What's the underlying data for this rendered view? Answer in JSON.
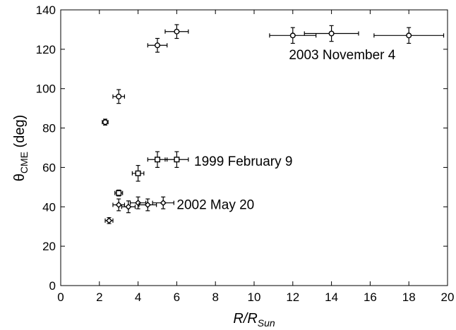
{
  "chart_data": {
    "type": "scatter",
    "xlabel": {
      "main": "R/R",
      "sub": "Sun"
    },
    "ylabel": {
      "main": "θ",
      "sub": "CME",
      "unit": " (deg)"
    },
    "xlim": [
      0,
      20
    ],
    "ylim": [
      0,
      140
    ],
    "xticks": [
      0,
      2,
      4,
      6,
      8,
      10,
      12,
      14,
      16,
      18,
      20
    ],
    "yticks": [
      0,
      20,
      40,
      60,
      80,
      100,
      120,
      140
    ],
    "grid": false,
    "legend": "none",
    "annotations": [
      {
        "text": "2003 November 4",
        "x": 11.8,
        "y": 117
      },
      {
        "text": "1999 February 9",
        "x": 6.9,
        "y": 63
      },
      {
        "text": "2002 May 20",
        "x": 6.0,
        "y": 41
      }
    ],
    "series": [
      {
        "marker": "circle",
        "points": [
          {
            "x": 2.3,
            "y": 83,
            "xerr": 0.15,
            "yerr": 1.5
          },
          {
            "x": 3.0,
            "y": 96,
            "xerr": 0.3,
            "yerr": 3.5
          },
          {
            "x": 5.0,
            "y": 122,
            "xerr": 0.5,
            "yerr": 3.5
          },
          {
            "x": 6.0,
            "y": 129,
            "xerr": 0.6,
            "yerr": 3.5
          },
          {
            "x": 12.0,
            "y": 127,
            "xerr": 1.2,
            "yerr": 4
          },
          {
            "x": 14.0,
            "y": 128,
            "xerr": 1.4,
            "yerr": 4
          },
          {
            "x": 18.0,
            "y": 127,
            "xerr": 1.8,
            "yerr": 4
          }
        ]
      },
      {
        "marker": "square",
        "points": [
          {
            "x": 3.0,
            "y": 47,
            "xerr": 0.2,
            "yerr": 1.5
          },
          {
            "x": 4.0,
            "y": 57,
            "xerr": 0.3,
            "yerr": 4
          },
          {
            "x": 5.0,
            "y": 64,
            "xerr": 0.5,
            "yerr": 4
          },
          {
            "x": 6.0,
            "y": 64,
            "xerr": 0.6,
            "yerr": 4
          }
        ]
      },
      {
        "marker": "diamond",
        "points": [
          {
            "x": 2.5,
            "y": 33,
            "xerr": 0.2,
            "yerr": 1.5
          },
          {
            "x": 3.0,
            "y": 41,
            "xerr": 0.3,
            "yerr": 3
          },
          {
            "x": 3.5,
            "y": 40,
            "xerr": 0.35,
            "yerr": 3
          },
          {
            "x": 4.0,
            "y": 42,
            "xerr": 0.4,
            "yerr": 3
          },
          {
            "x": 4.5,
            "y": 41,
            "xerr": 0.45,
            "yerr": 3
          },
          {
            "x": 5.3,
            "y": 42,
            "xerr": 0.55,
            "yerr": 3
          }
        ]
      }
    ]
  }
}
